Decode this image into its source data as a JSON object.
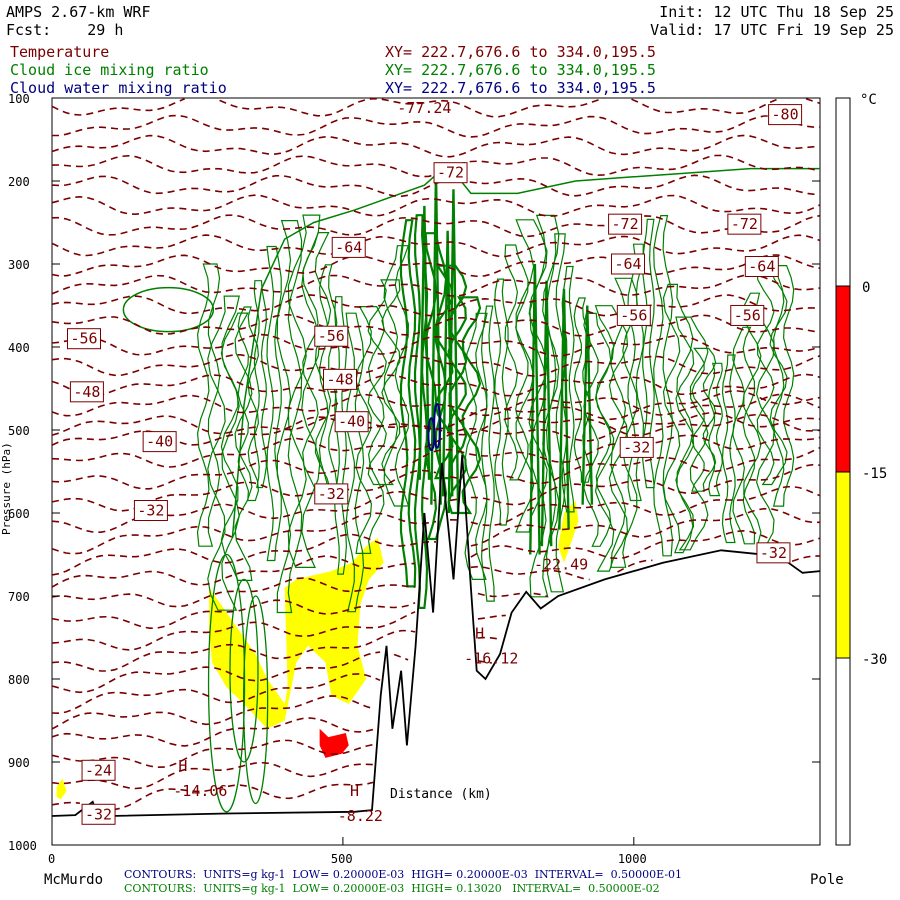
{
  "header": {
    "model": "AMPS 2.67-km WRF",
    "fcst": "Fcst:    29 h",
    "init": "Init: 12 UTC Thu 18 Sep 25",
    "valid": "Valid: 17 UTC Fri 19 Sep 25"
  },
  "fields": [
    {
      "name": "Temperature",
      "xy": "XY= 222.7,676.6 to 334.0,195.5",
      "color": "#7a0000"
    },
    {
      "name": "Cloud ice mixing ratio",
      "xy": "XY= 222.7,676.6 to 334.0,195.5",
      "color": "#008000"
    },
    {
      "name": "Cloud water mixing ratio",
      "xy": "XY= 222.7,676.6 to 334.0,195.5",
      "color": "#000080"
    }
  ],
  "colorbar": {
    "unit": "°C",
    "labels": [
      "0",
      "-15",
      "-30"
    ],
    "bands": [
      {
        "range": "> 0",
        "color": "#ffffff"
      },
      {
        "range": "0 to -15",
        "color": "#ff0000"
      },
      {
        "range": "-15 to -30",
        "color": "#ffff00"
      },
      {
        "range": "< -30",
        "color": "#ffffff"
      }
    ]
  },
  "footer": {
    "start_label": "McMurdo",
    "end_label": "Pole",
    "water_line": "CONTOURS:  UNITS=g kg-1  LOW= 0.20000E-03  HIGH= 0.20000E-03  INTERVAL=  0.50000E-01",
    "ice_line": "CONTOURS:  UNITS=g kg-1  LOW= 0.20000E-03  HIGH= 0.13020   INTERVAL=  0.50000E-02"
  },
  "chart_data": {
    "type": "cross-section",
    "xlabel": "Distance (km)",
    "ylabel": "Pressure (hPa)",
    "xlim": [
      0,
      1320
    ],
    "ylim": [
      1000,
      100
    ],
    "x_ticks": [
      0,
      500,
      1000
    ],
    "y_ticks": [
      100,
      200,
      300,
      400,
      500,
      600,
      700,
      800,
      900,
      1000
    ],
    "temperature_labels": [
      {
        "text": "-77.24",
        "x": 640,
        "p": 112
      },
      {
        "text": "-80",
        "x": 1260,
        "p": 120
      },
      {
        "text": "-72",
        "x": 685,
        "p": 190
      },
      {
        "text": "-72",
        "x": 985,
        "p": 252
      },
      {
        "text": "-72",
        "x": 1190,
        "p": 252
      },
      {
        "text": "-64",
        "x": 510,
        "p": 280
      },
      {
        "text": "-64",
        "x": 990,
        "p": 300
      },
      {
        "text": "-64",
        "x": 1220,
        "p": 303
      },
      {
        "text": "-56",
        "x": 1000,
        "p": 362
      },
      {
        "text": "-56",
        "x": 1195,
        "p": 362
      },
      {
        "text": "-56",
        "x": 480,
        "p": 387
      },
      {
        "text": "-56",
        "x": 55,
        "p": 390
      },
      {
        "text": "-48",
        "x": 495,
        "p": 439
      },
      {
        "text": "-48",
        "x": 60,
        "p": 454
      },
      {
        "text": "-40",
        "x": 515,
        "p": 490
      },
      {
        "text": "-40",
        "x": 185,
        "p": 514
      },
      {
        "text": "-32",
        "x": 1005,
        "p": 521
      },
      {
        "text": "-32",
        "x": 480,
        "p": 577
      },
      {
        "text": "-32",
        "x": 170,
        "p": 597
      },
      {
        "text": "-32",
        "x": 1240,
        "p": 648
      },
      {
        "text": "-24",
        "x": 80,
        "p": 910
      },
      {
        "text": "-32",
        "x": 80,
        "p": 963
      }
    ],
    "annotations": [
      {
        "text": "H",
        "x": 225,
        "p": 905
      },
      {
        "text": "-14.06",
        "x": 255,
        "p": 935
      },
      {
        "text": "H",
        "x": 520,
        "p": 935
      },
      {
        "text": "-8.22",
        "x": 530,
        "p": 965
      },
      {
        "text": "H",
        "x": 735,
        "p": 745
      },
      {
        "text": "-16.12",
        "x": 755,
        "p": 775
      },
      {
        "text": "-22.49",
        "x": 875,
        "p": 662
      }
    ],
    "terrain_surface": [
      {
        "x": 0,
        "p": 965
      },
      {
        "x": 40,
        "p": 964
      },
      {
        "x": 70,
        "p": 948
      },
      {
        "x": 80,
        "p": 968
      },
      {
        "x": 100,
        "p": 965
      },
      {
        "x": 300,
        "p": 962
      },
      {
        "x": 520,
        "p": 960
      },
      {
        "x": 550,
        "p": 958
      },
      {
        "x": 565,
        "p": 820
      },
      {
        "x": 575,
        "p": 760
      },
      {
        "x": 585,
        "p": 860
      },
      {
        "x": 600,
        "p": 790
      },
      {
        "x": 610,
        "p": 880
      },
      {
        "x": 625,
        "p": 760
      },
      {
        "x": 640,
        "p": 600
      },
      {
        "x": 655,
        "p": 720
      },
      {
        "x": 670,
        "p": 540
      },
      {
        "x": 690,
        "p": 680
      },
      {
        "x": 705,
        "p": 530
      },
      {
        "x": 720,
        "p": 690
      },
      {
        "x": 730,
        "p": 790
      },
      {
        "x": 745,
        "p": 800
      },
      {
        "x": 770,
        "p": 770
      },
      {
        "x": 790,
        "p": 720
      },
      {
        "x": 815,
        "p": 695
      },
      {
        "x": 840,
        "p": 715
      },
      {
        "x": 870,
        "p": 700
      },
      {
        "x": 950,
        "p": 680
      },
      {
        "x": 1050,
        "p": 660
      },
      {
        "x": 1150,
        "p": 645
      },
      {
        "x": 1250,
        "p": 652
      },
      {
        "x": 1290,
        "p": 672
      },
      {
        "x": 1320,
        "p": 670
      }
    ],
    "shaded_regions": [
      {
        "band": "0 to -15",
        "polygon": [
          [
            460,
            860
          ],
          [
            475,
            870
          ],
          [
            505,
            865
          ],
          [
            510,
            880
          ],
          [
            498,
            890
          ],
          [
            470,
            895
          ],
          [
            460,
            880
          ]
        ]
      },
      {
        "band": "-15 to -30",
        "polygon": [
          [
            270,
            690
          ],
          [
            290,
            710
          ],
          [
            320,
            740
          ],
          [
            350,
            770
          ],
          [
            370,
            800
          ],
          [
            400,
            830
          ],
          [
            405,
            810
          ],
          [
            400,
            690
          ],
          [
            420,
            680
          ],
          [
            480,
            670
          ],
          [
            515,
            660
          ],
          [
            540,
            640
          ],
          [
            560,
            630
          ],
          [
            570,
            660
          ],
          [
            545,
            680
          ],
          [
            530,
            710
          ],
          [
            525,
            760
          ],
          [
            540,
            800
          ],
          [
            510,
            830
          ],
          [
            480,
            820
          ],
          [
            470,
            780
          ],
          [
            440,
            760
          ],
          [
            420,
            780
          ],
          [
            400,
            850
          ],
          [
            370,
            860
          ],
          [
            330,
            830
          ],
          [
            300,
            810
          ],
          [
            275,
            780
          ],
          [
            270,
            740
          ]
        ]
      },
      {
        "band": "-15 to -30",
        "polygon": [
          [
            8,
            930
          ],
          [
            18,
            920
          ],
          [
            25,
            935
          ],
          [
            15,
            945
          ],
          [
            8,
            942
          ]
        ]
      },
      {
        "band": "-15 to -30",
        "polygon": [
          [
            880,
            600
          ],
          [
            900,
            585
          ],
          [
            905,
            610
          ],
          [
            890,
            640
          ],
          [
            880,
            660
          ],
          [
            870,
            640
          ]
        ]
      }
    ],
    "cloud_ice_contour_levels": {
      "low": 0.0002,
      "high": 0.1302,
      "interval": 0.005,
      "units": "g kg-1"
    },
    "cloud_water_contour_levels": {
      "low": 0.0002,
      "high": 0.0002,
      "interval": 0.05,
      "units": "g kg-1"
    }
  }
}
